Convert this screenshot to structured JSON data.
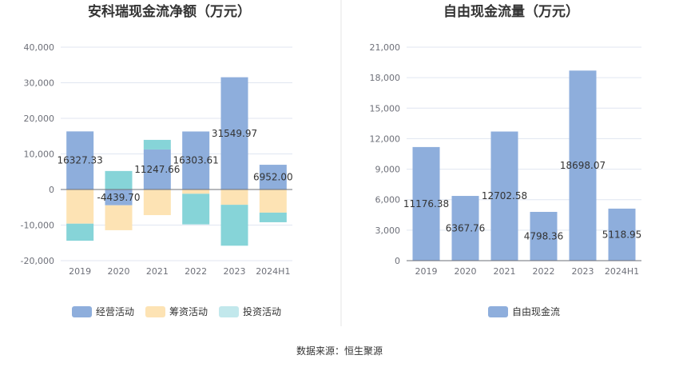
{
  "footer": {
    "source": "数据来源：恒生聚源"
  },
  "chart_data": [
    {
      "type": "bar",
      "stacked": true,
      "title": "安科瑞现金流净额（万元）",
      "categories": [
        "2019",
        "2020",
        "2021",
        "2022",
        "2023",
        "2024H1"
      ],
      "ylim": [
        -20000,
        40000
      ],
      "yticks": [
        -20000,
        -10000,
        0,
        10000,
        20000,
        30000,
        40000
      ],
      "ytick_labels": [
        "-20,000",
        "-10,000",
        "0",
        "10,000",
        "20,000",
        "30,000",
        "40,000"
      ],
      "grid": true,
      "legend_position": "bottom",
      "series": [
        {
          "name": "经营活动",
          "color": "#8eaedc",
          "values": [
            16327.33,
            -4439.7,
            11247.66,
            16303.61,
            31549.97,
            6952.0
          ],
          "labels": [
            "16327.33",
            "-4439.70",
            "11247.66",
            "16303.61",
            "31549.97",
            "6952.00"
          ]
        },
        {
          "name": "筹资活动",
          "color": "#fde3b4",
          "values": [
            -9600,
            -7000,
            -7200,
            -1200,
            -4300,
            -6500
          ]
        },
        {
          "name": "投资活动",
          "color": "#86d4d8",
          "values": [
            -4800,
            5200,
            2700,
            -8600,
            -11500,
            -2700
          ]
        }
      ],
      "legend_colors": [
        "#8eaedc",
        "#fde3b4",
        "#c2e8ec"
      ]
    },
    {
      "type": "bar",
      "title": "自由现金流量（万元）",
      "categories": [
        "2019",
        "2020",
        "2021",
        "2022",
        "2023",
        "2024H1"
      ],
      "ylim": [
        0,
        21000
      ],
      "yticks": [
        0,
        3000,
        6000,
        9000,
        12000,
        15000,
        18000,
        21000
      ],
      "ytick_labels": [
        "0",
        "3,000",
        "6,000",
        "9,000",
        "12,000",
        "15,000",
        "18,000",
        "21,000"
      ],
      "grid": true,
      "legend_position": "bottom",
      "series": [
        {
          "name": "自由现金流",
          "color": "#8eaedc",
          "values": [
            11176.38,
            6367.76,
            12702.58,
            4798.36,
            18698.07,
            5118.95
          ],
          "labels": [
            "11176.38",
            "6367.76",
            "12702.58",
            "4798.36",
            "18698.07",
            "5118.95"
          ]
        }
      ]
    }
  ]
}
